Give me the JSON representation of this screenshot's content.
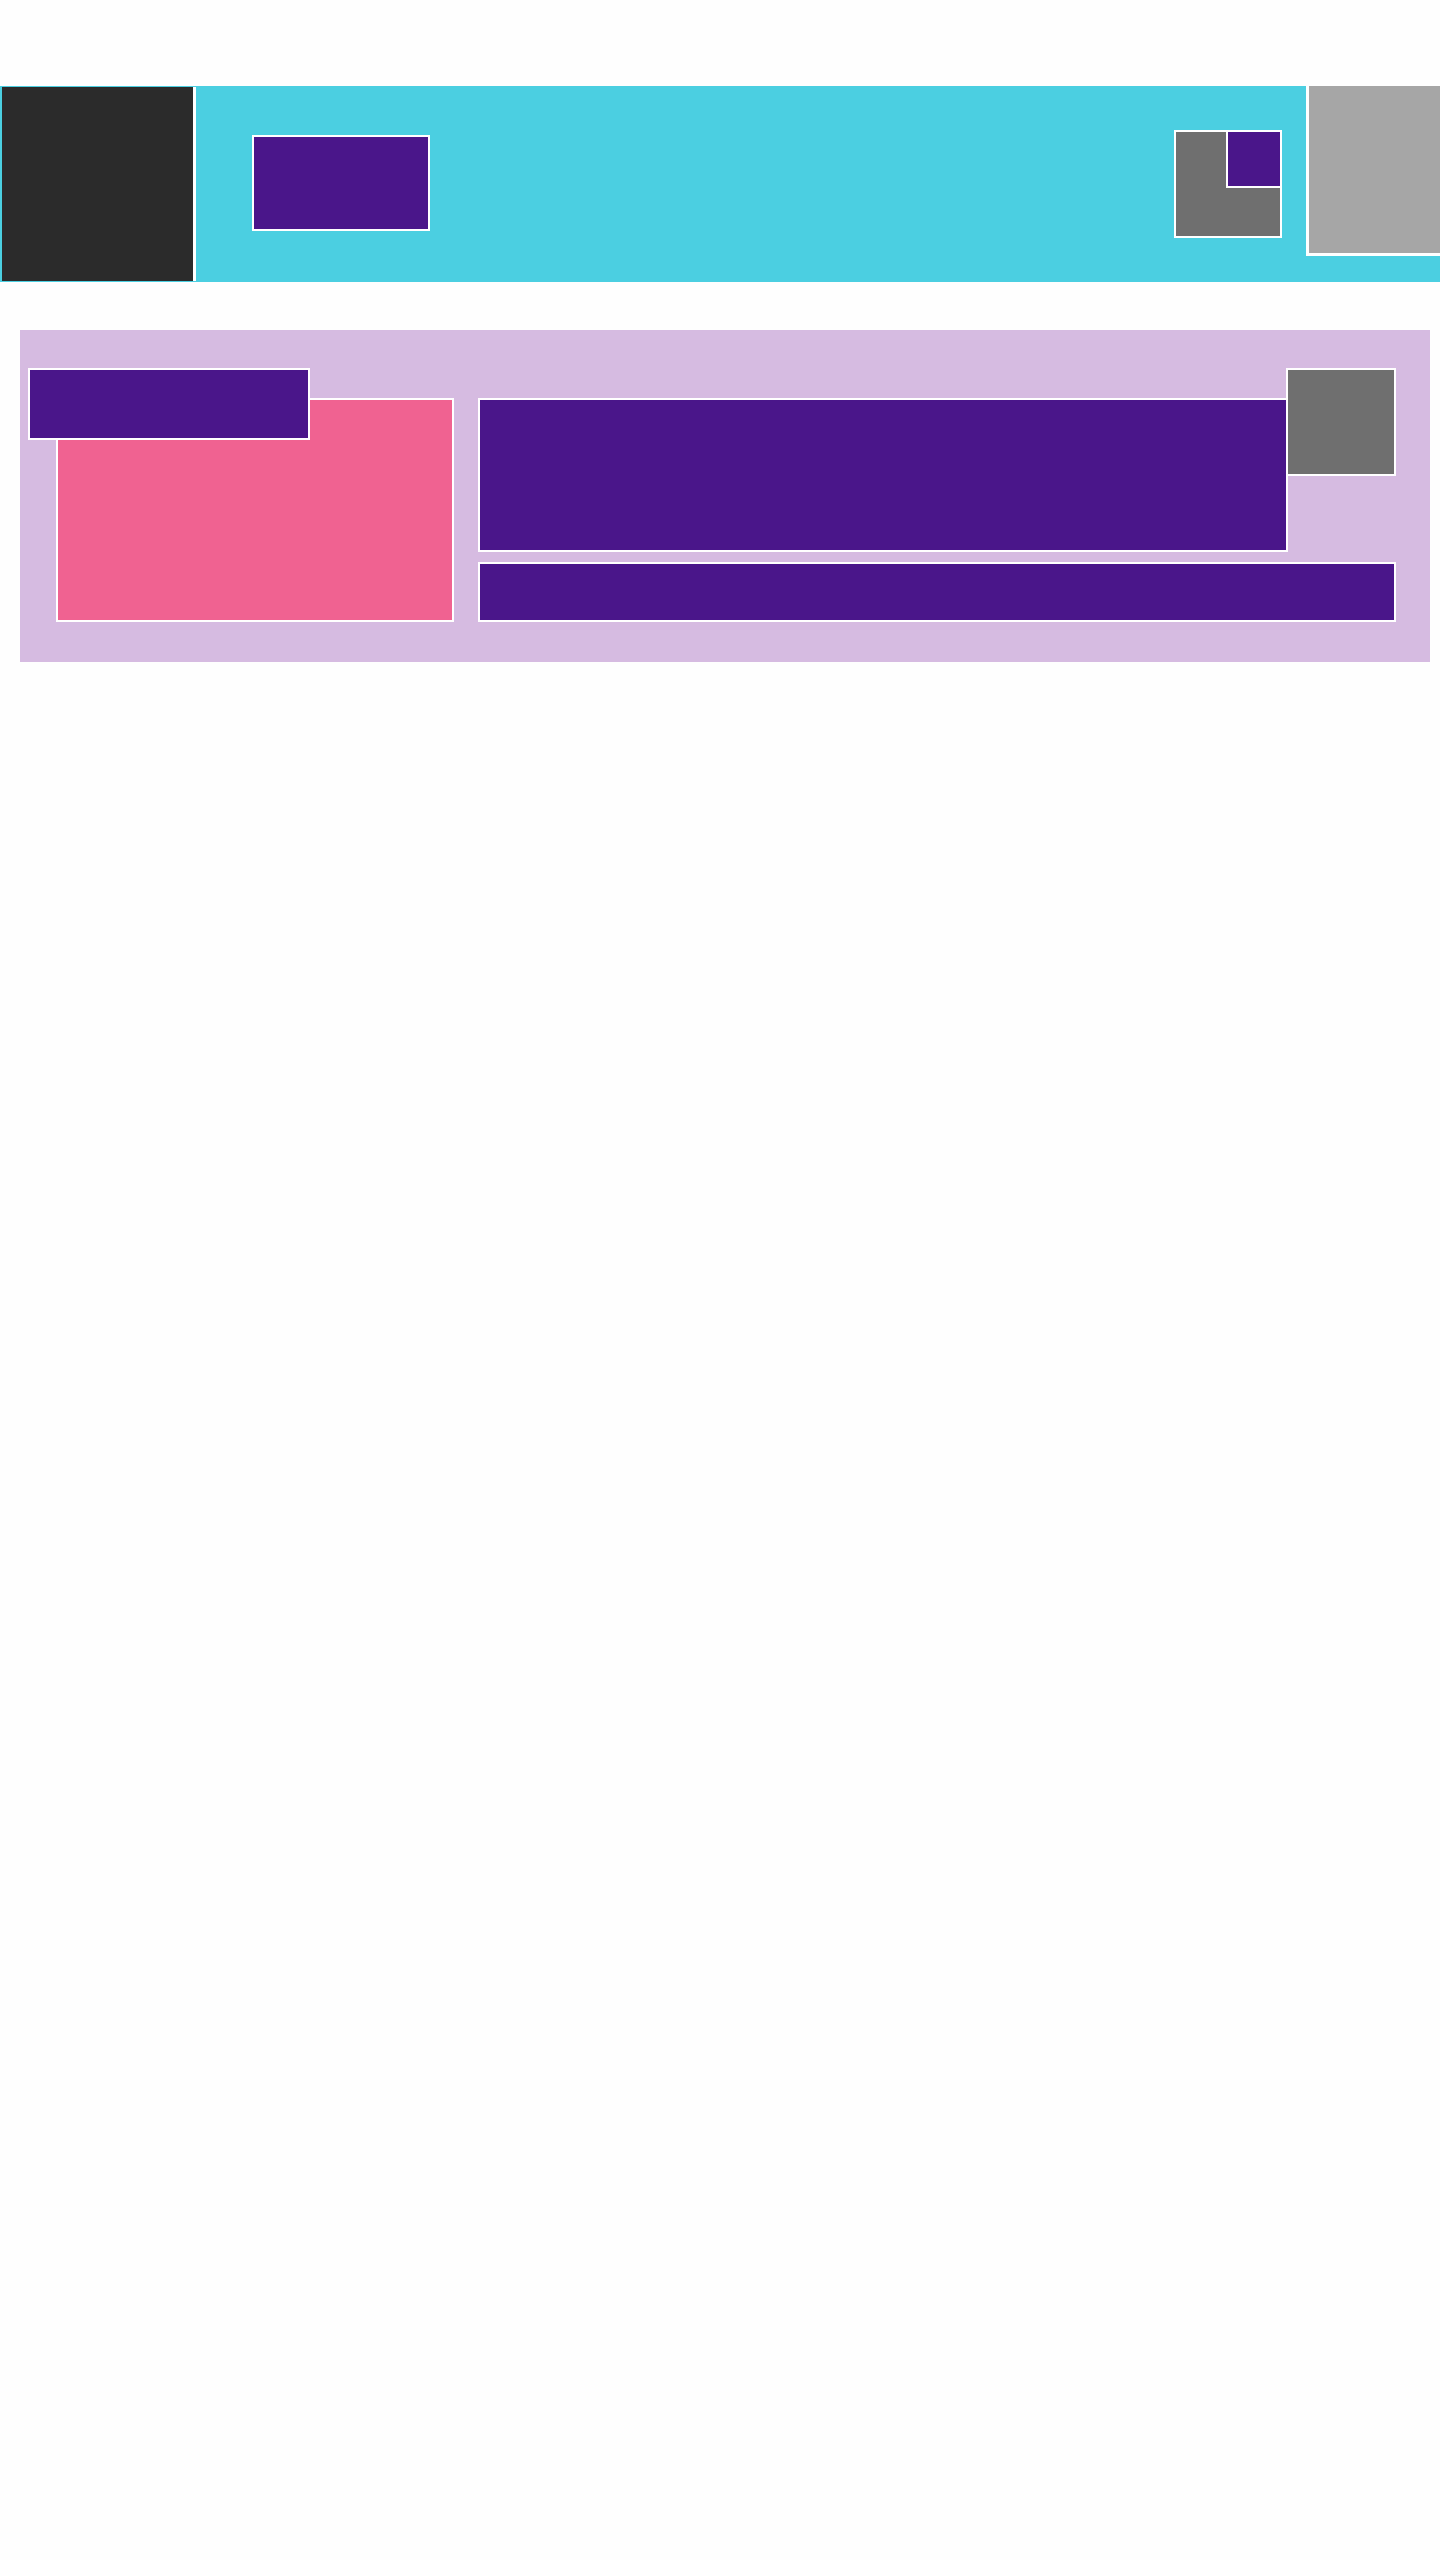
{
  "header": {
    "background_color": "#4bcfe1",
    "side_block_color": "#2b2b2b",
    "label_box_color": "#4a168a",
    "widget_color": "#6f6f6f",
    "widget_inner_color": "#4a168a",
    "right_panel_color": "#a6a6a6"
  },
  "card": {
    "background_color": "#d6bbe1",
    "image_color": "#f06291",
    "label_box_color": "#4a168a",
    "title_box_color": "#4a168a",
    "icon_box_color": "#6f6f6f",
    "bar_color": "#4a168a"
  }
}
